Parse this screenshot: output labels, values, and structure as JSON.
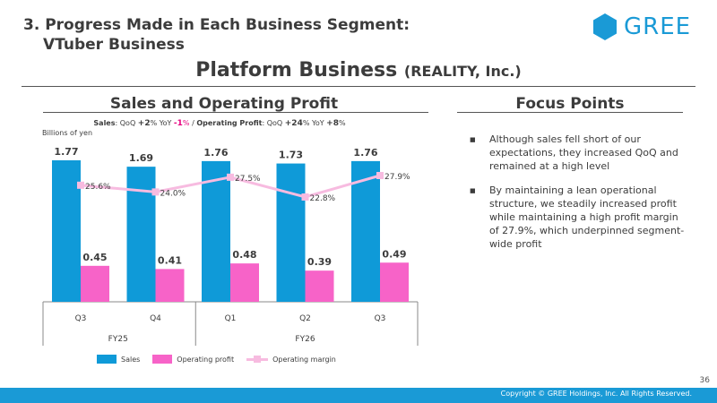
{
  "header": {
    "section_title_line1": "3. Progress Made in Each Business Segment:",
    "section_title_line2": "VTuber Business",
    "logo_text": "GREE",
    "slide_title": "Platform Business",
    "slide_title_sub": "(REALITY, Inc.)"
  },
  "left_panel": {
    "heading": "Sales and Operating Profit",
    "growth_note": {
      "sales_label": "Sales",
      "qoq_label": "QoQ",
      "sales_qoq": "+2",
      "yoy_label": "YoY",
      "sales_yoy": "-1",
      "op_label": "Operating Profit",
      "op_qoq": "+24",
      "op_yoy": "+8",
      "pct": "%",
      "colon": ":",
      "separator": "/"
    },
    "unit": "Billions of yen"
  },
  "chart_data": {
    "type": "bar",
    "categories": [
      "Q3",
      "Q4",
      "Q1",
      "Q2",
      "Q3"
    ],
    "groups": [
      {
        "label": "FY25",
        "span": [
          0,
          1
        ]
      },
      {
        "label": "FY26",
        "span": [
          2,
          4
        ]
      }
    ],
    "series": [
      {
        "name": "Sales",
        "type": "bar",
        "color": "#0f9ad8",
        "values": [
          1.77,
          1.69,
          1.76,
          1.73,
          1.76
        ],
        "labels": [
          "1.77",
          "1.69",
          "1.76",
          "1.73",
          "1.76"
        ]
      },
      {
        "name": "Operating profit",
        "type": "bar",
        "color": "#f763c8",
        "values": [
          0.45,
          0.41,
          0.48,
          0.39,
          0.49
        ],
        "labels": [
          "0.45",
          "0.41",
          "0.48",
          "0.39",
          "0.49"
        ]
      },
      {
        "name": "Operating margin",
        "type": "line",
        "color": "#f7bbe0",
        "values": [
          25.6,
          24.0,
          27.5,
          22.8,
          27.9
        ],
        "labels": [
          "25.6%",
          "24.0%",
          "27.5%",
          "22.8%",
          "27.9%"
        ]
      }
    ],
    "legend": "bottom",
    "grid": false
  },
  "right_panel": {
    "heading": "Focus Points",
    "bullet_glyph": "■",
    "points": [
      "Although sales fell short of our expectations, they increased QoQ and remained at a high level",
      "By maintaining a lean operational structure, we steadily increased profit while maintaining a high profit margin of 27.9%, which underpinned segment-wide profit"
    ]
  },
  "footer": {
    "page_number": "36",
    "copyright": "Copyright © GREE Holdings, Inc. All Rights Reserved."
  }
}
